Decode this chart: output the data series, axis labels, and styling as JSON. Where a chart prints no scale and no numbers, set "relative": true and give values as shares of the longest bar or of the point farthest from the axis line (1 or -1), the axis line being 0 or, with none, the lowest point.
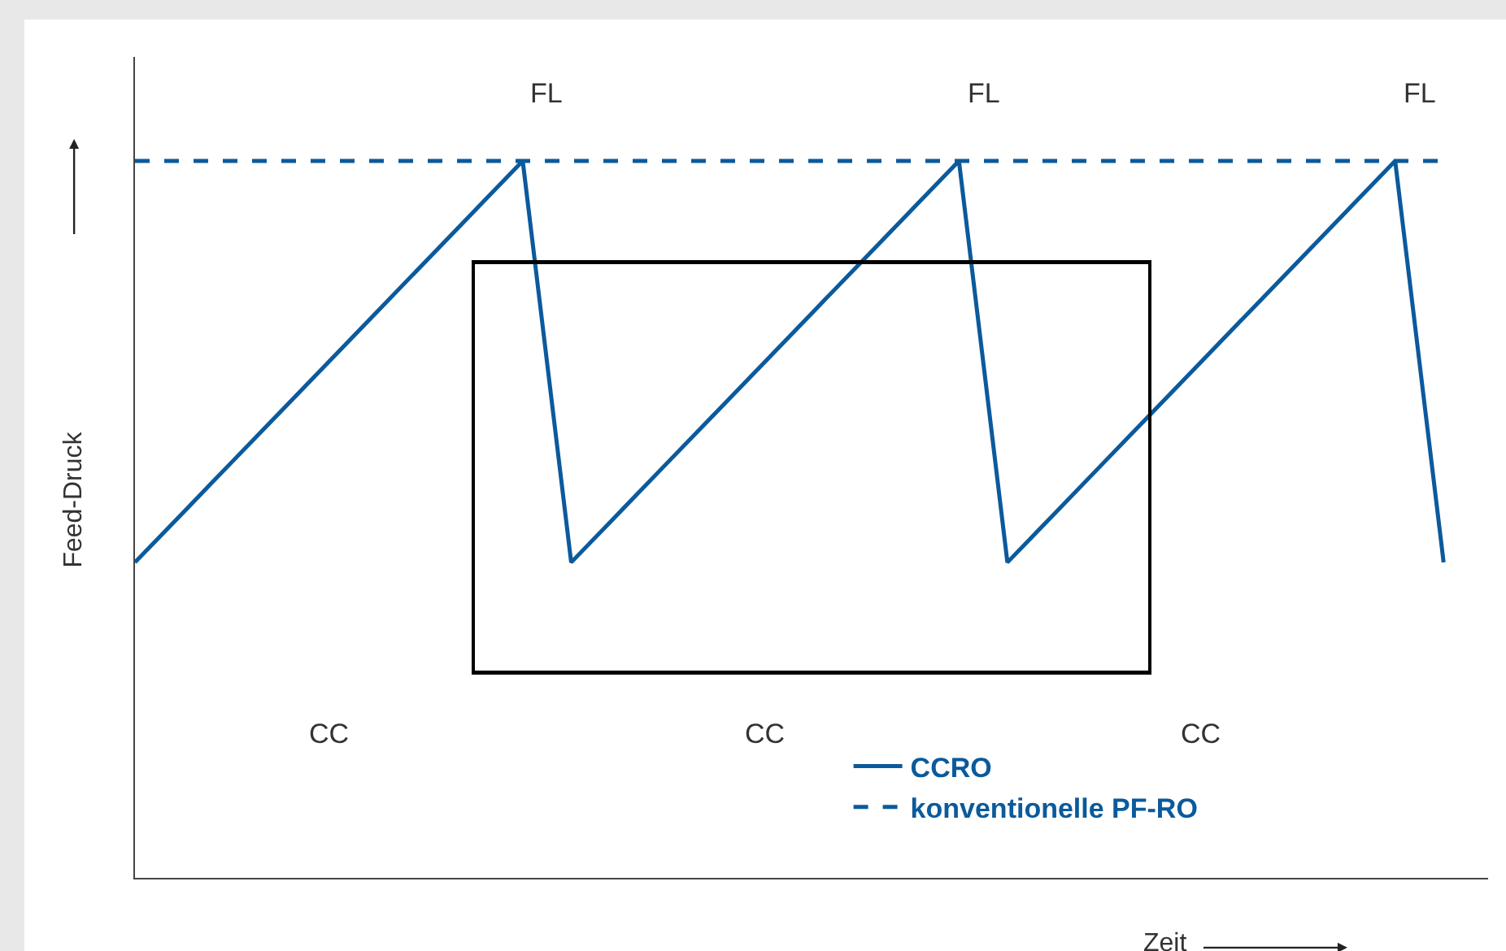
{
  "chart_data": {
    "type": "line",
    "relative": true,
    "xlabel": "Zeit",
    "ylabel": "Feed-Druck",
    "categories": [
      null,
      null,
      null,
      null,
      null,
      null,
      null,
      null,
      null,
      null,
      null,
      null,
      null,
      null,
      null,
      null,
      null,
      null,
      null,
      null,
      null,
      null,
      null,
      null,
      null,
      null,
      null,
      null
    ],
    "series": [
      {
        "name": "CCRO",
        "color": "#0b5a9c",
        "line_style": "solid",
        "values": [
          0.44,
          0.51,
          0.58,
          0.65,
          0.72,
          0.79,
          0.86,
          0.93,
          1,
          0.44,
          0.51,
          0.58,
          0.65,
          0.72,
          0.79,
          0.86,
          0.93,
          1,
          0.44,
          0.51,
          0.58,
          0.65,
          0.72,
          0.79,
          0.86,
          0.93,
          1,
          0.44
        ]
      },
      {
        "name": "konventionelle PF-RO",
        "color": "#0b5a9c",
        "line_style": "dashed",
        "values": [
          1,
          1,
          1,
          1,
          1,
          1,
          1,
          1,
          1,
          1,
          1,
          1,
          1,
          1,
          1,
          1,
          1,
          1,
          1,
          1,
          1,
          1,
          1,
          1,
          1,
          1,
          1,
          1
        ]
      }
    ],
    "annotations": [
      "CC",
      "FL",
      "CC",
      "FL",
      "CC",
      "FL"
    ],
    "legend": "bottom right",
    "marker": "none"
  }
}
